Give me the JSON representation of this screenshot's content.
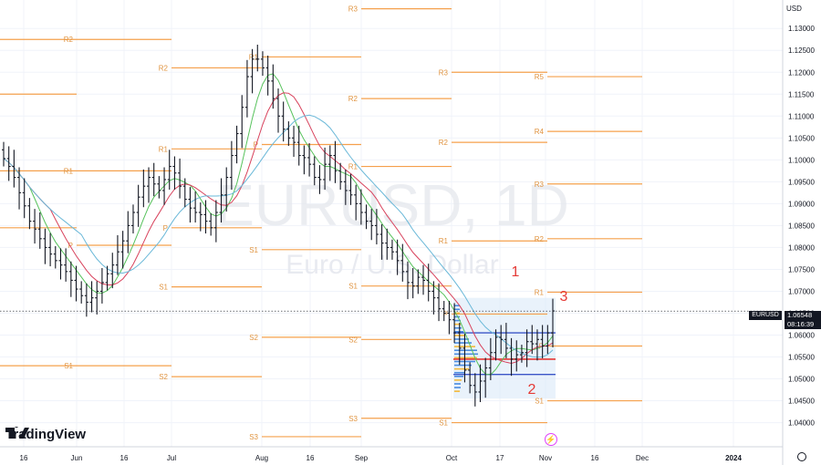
{
  "watermark": {
    "symbol": "EURUSD, 1D",
    "description": "Euro / U.S. Dollar"
  },
  "brand": "TradingView",
  "currency": "USD",
  "price_tag": {
    "symbol": "EURUSD",
    "price": "1.06548",
    "countdown": "08:16:39"
  },
  "colors": {
    "candle": "#131722",
    "pivot": "#f5a04c",
    "pivot_text": "#e09440",
    "ma_green": "#56c25b",
    "ma_red": "#d8425c",
    "ma_blue": "#6ab8d8",
    "annotation": "#e53935",
    "profile_box": "#3b55c8"
  },
  "chart_data": {
    "type": "candlestick",
    "y_axis": {
      "ticks": [
        "1.13000",
        "1.12500",
        "1.12000",
        "1.11500",
        "1.11000",
        "1.10500",
        "1.10000",
        "1.09500",
        "1.09000",
        "1.08500",
        "1.08000",
        "1.07500",
        "1.07000",
        "1.06500",
        "1.06000",
        "1.05500",
        "1.05000",
        "1.04500",
        "1.04000"
      ],
      "range": [
        1.0345,
        1.1365
      ]
    },
    "x_axis": {
      "labels": [
        "16",
        "Jun",
        "16",
        "Jul",
        "Aug",
        "16",
        "Sep",
        "Oct",
        "17",
        "Nov",
        "16",
        "Dec",
        "2024"
      ]
    },
    "last_price": 1.06548,
    "annotations": [
      "1",
      "2",
      "3"
    ],
    "pivot_labels": [
      {
        "label": "R2",
        "value": 1.1275
      },
      {
        "label": "R1",
        "value": 1.0975
      },
      {
        "label": "P",
        "value": 1.0805
      },
      {
        "label": "S1",
        "value": 1.053
      },
      {
        "label": "R2",
        "value": 1.121
      },
      {
        "label": "R1",
        "value": 1.1025
      },
      {
        "label": "P",
        "value": 1.0845
      },
      {
        "label": "S1",
        "value": 1.071
      },
      {
        "label": "S2",
        "value": 1.0505
      },
      {
        "label": "R1",
        "value": 1.1235
      },
      {
        "label": "P",
        "value": 1.1035
      },
      {
        "label": "S1",
        "value": 1.0795
      },
      {
        "label": "S2",
        "value": 1.0595
      },
      {
        "label": "S3",
        "value": 1.0368
      },
      {
        "label": "R3",
        "value": 1.1345
      },
      {
        "label": "R2",
        "value": 1.114
      },
      {
        "label": "R1",
        "value": 1.0985
      },
      {
        "label": "S1",
        "value": 1.0712
      },
      {
        "label": "S2",
        "value": 1.059
      },
      {
        "label": "S3",
        "value": 1.041
      },
      {
        "label": "R3",
        "value": 1.12
      },
      {
        "label": "R2",
        "value": 1.104
      },
      {
        "label": "R1",
        "value": 1.0815
      },
      {
        "label": "P",
        "value": 1.0648
      },
      {
        "label": "S1",
        "value": 1.04
      },
      {
        "label": "R5",
        "value": 1.119
      },
      {
        "label": "R4",
        "value": 1.1065
      },
      {
        "label": "R3",
        "value": 1.0945
      },
      {
        "label": "R2",
        "value": 1.082
      },
      {
        "label": "R1",
        "value": 1.0698
      },
      {
        "label": "P",
        "value": 1.0575
      },
      {
        "label": "S1",
        "value": 1.045
      }
    ],
    "closes": [
      1.1003,
      1.0985,
      1.096,
      1.0925,
      1.0895,
      1.086,
      1.0842,
      1.082,
      1.08,
      1.0785,
      1.077,
      1.076,
      1.0745,
      1.0725,
      1.0705,
      1.069,
      1.0675,
      1.0685,
      1.07,
      1.072,
      1.074,
      1.076,
      1.079,
      1.0815,
      1.085,
      1.088,
      1.0915,
      1.094,
      1.096,
      1.0945,
      1.093,
      1.0955,
      1.0985,
      1.097,
      1.094,
      1.091,
      1.089,
      1.088,
      1.0875,
      1.086,
      1.0845,
      1.088,
      1.092,
      1.096,
      1.101,
      1.106,
      1.112,
      1.119,
      1.123,
      1.123,
      1.121,
      1.118,
      1.114,
      1.11,
      1.107,
      1.105,
      1.104,
      1.101,
      1.1005,
      1.099,
      1.096,
      1.0955,
      1.099,
      1.101,
      1.0975,
      1.095,
      1.093,
      1.092,
      1.09,
      1.088,
      1.086,
      1.085,
      1.083,
      1.081,
      1.08,
      1.079,
      1.077,
      1.0745,
      1.072,
      1.0712,
      1.0732,
      1.0725,
      1.07,
      1.0685,
      1.066,
      1.065,
      1.0635,
      1.0605,
      1.057,
      1.052,
      1.0485,
      1.047,
      1.0495,
      1.0525,
      1.056,
      1.0595,
      1.059,
      1.057,
      1.0545,
      1.0555,
      1.056,
      1.0585,
      1.058,
      1.059,
      1.0575,
      1.0605,
      1.0655
    ]
  }
}
